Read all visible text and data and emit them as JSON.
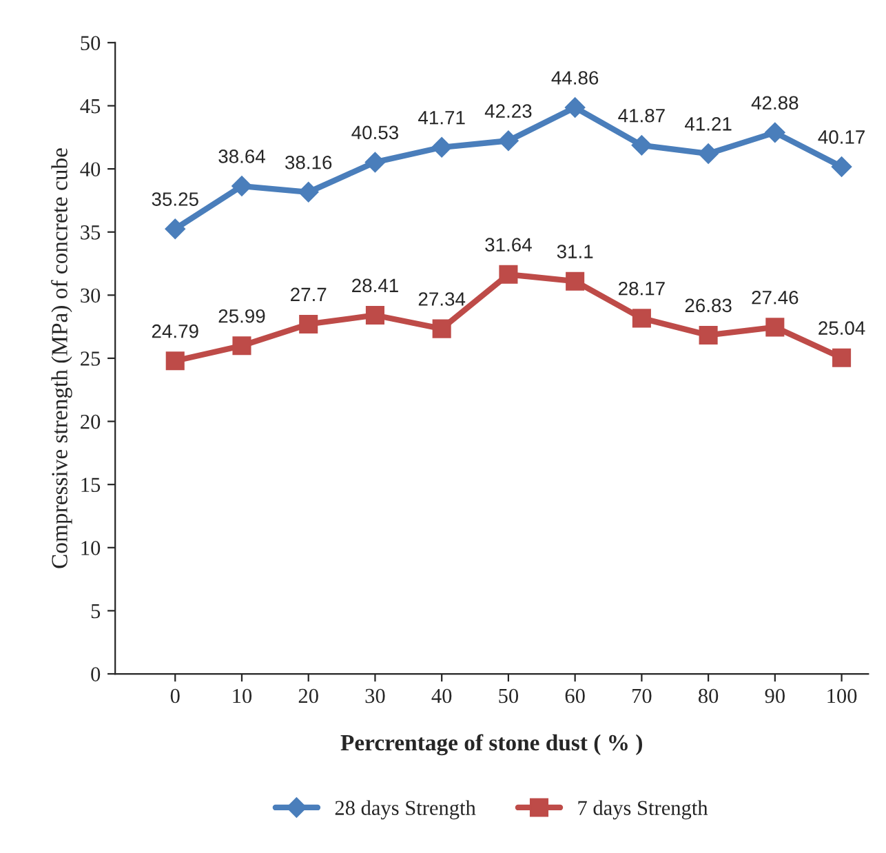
{
  "chart_data": {
    "type": "line",
    "xlabel": "Percrentage of stone dust ( % )",
    "ylabel": "Compressive strength (MPa) of concrete cube",
    "categories": [
      "0",
      "10",
      "20",
      "30",
      "40",
      "50",
      "60",
      "70",
      "80",
      "90",
      "100"
    ],
    "series": [
      {
        "name": "28 days Strength",
        "color": "#4a7ebb",
        "marker": "diamond",
        "values": [
          35.25,
          38.64,
          38.16,
          40.53,
          41.71,
          42.23,
          44.86,
          41.87,
          41.21,
          42.88,
          40.17
        ]
      },
      {
        "name": "7 days Strength",
        "color": "#be4b48",
        "marker": "square",
        "values": [
          24.79,
          25.99,
          27.7,
          28.41,
          27.34,
          31.64,
          31.1,
          28.17,
          26.83,
          27.46,
          25.04
        ]
      }
    ],
    "ylim": [
      0,
      50
    ],
    "yticks": [
      0,
      5,
      10,
      15,
      20,
      25,
      30,
      35,
      40,
      45,
      50
    ],
    "data_labels": true,
    "grid": false,
    "legend": "bottom"
  }
}
